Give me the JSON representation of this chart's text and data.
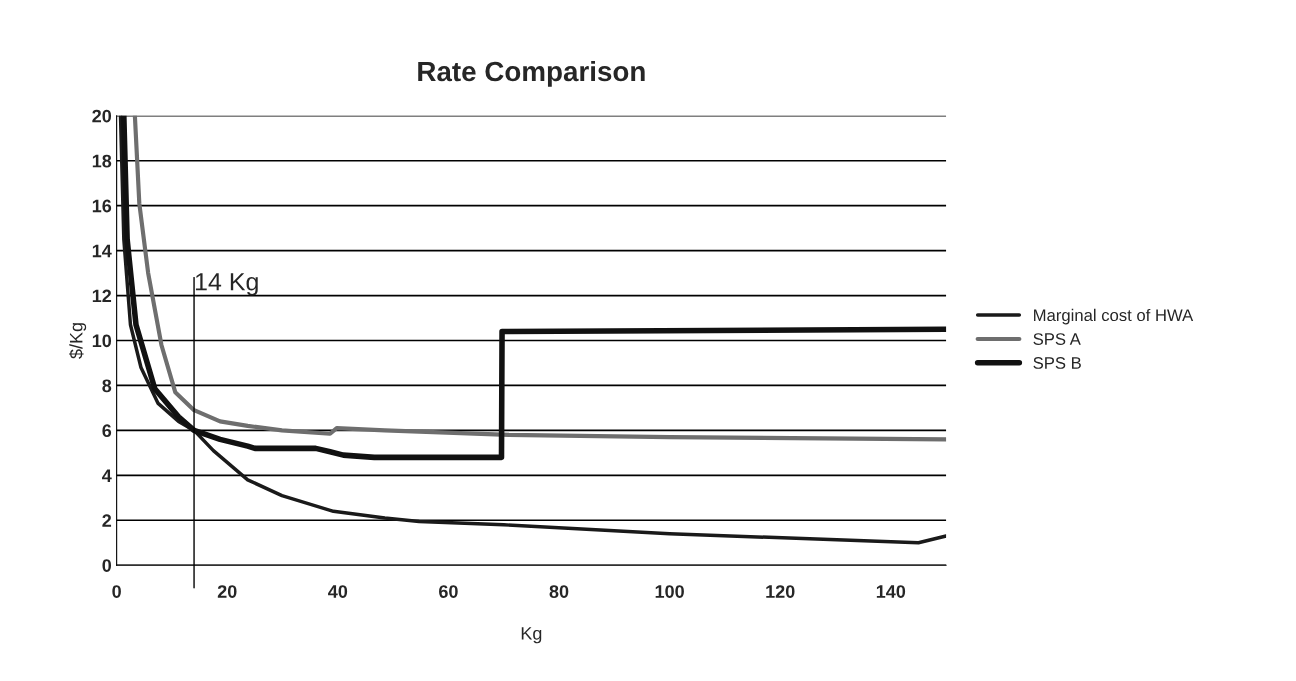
{
  "chart_data": {
    "type": "line",
    "title": "Rate Comparison",
    "xlabel": "Kg",
    "ylabel": "$/Kg",
    "xlim": [
      0,
      150
    ],
    "xticks": [
      0,
      20,
      40,
      60,
      80,
      100,
      120,
      140
    ],
    "ylim": [
      0,
      20
    ],
    "yticks": [
      0,
      2,
      4,
      6,
      8,
      10,
      12,
      14,
      16,
      18,
      20
    ],
    "grid": "y",
    "legend": "right",
    "marker": "none",
    "line_style": "solid",
    "ref_lines": [
      {
        "axis": "x",
        "value": 14,
        "label": "14 Kg",
        "color": "#000000"
      }
    ],
    "series": [
      {
        "name": "Marginal cost of HWA",
        "color": "#1a1a1a",
        "x": [
          0.7,
          1.3,
          2.5,
          4.4,
          7.5,
          11.2,
          14,
          17.5,
          23.7,
          29.9,
          39.2,
          48.5,
          54.7,
          70,
          100,
          145,
          150
        ],
        "values": [
          20,
          14.5,
          10.7,
          8.8,
          7.2,
          6.4,
          6.0,
          5.1,
          3.8,
          3.1,
          2.4,
          2.1,
          1.95,
          1.8,
          1.4,
          1.0,
          1.3
        ]
      },
      {
        "name": "SPS A",
        "color": "#6e6e6e",
        "x": [
          3.3,
          4.1,
          5.7,
          8.1,
          10.6,
          14,
          18.7,
          23.7,
          29.9,
          38.6,
          39.8,
          48.5,
          70.9,
          100,
          150
        ],
        "values": [
          20,
          16.1,
          13.0,
          9.8,
          7.7,
          6.9,
          6.4,
          6.2,
          6.0,
          5.85,
          6.1,
          6.0,
          5.8,
          5.7,
          5.6
        ]
      },
      {
        "name": "SPS B",
        "color": "#111111",
        "x": [
          1.3,
          1.9,
          3.5,
          6.9,
          11.2,
          14,
          18.7,
          23.7,
          25,
          36,
          38.6,
          41,
          46.6,
          69.6,
          69.7,
          150
        ],
        "values": [
          20,
          14.5,
          10.7,
          7.85,
          6.6,
          6.0,
          5.6,
          5.3,
          5.2,
          5.2,
          5.05,
          4.9,
          4.8,
          4.8,
          10.4,
          10.5
        ]
      }
    ]
  }
}
